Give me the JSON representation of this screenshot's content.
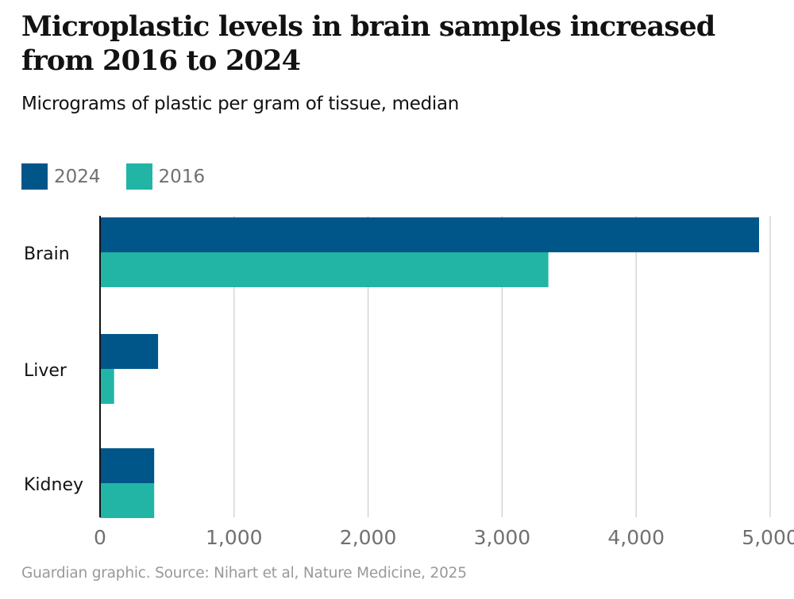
{
  "chart_data": {
    "type": "bar",
    "orientation": "horizontal",
    "title": "Microplastic levels in brain samples increased from 2016 to 2024",
    "subtitle": "Micrograms of plastic per gram of tissue, median",
    "categories": [
      "Brain",
      "Liver",
      "Kidney"
    ],
    "series": [
      {
        "name": "2024",
        "color": "#005689",
        "values": [
          4917,
          433,
          404
        ]
      },
      {
        "name": "2016",
        "color": "#22b5a6",
        "values": [
          3345,
          105,
          404
        ]
      }
    ],
    "xlim": [
      0,
      5000
    ],
    "x_ticks": [
      0,
      1000,
      2000,
      3000,
      4000,
      5000
    ],
    "x_tick_labels": [
      "0",
      "1,000",
      "2,000",
      "3,000",
      "4,000",
      "5,000"
    ],
    "grid": "vertical",
    "legend_position": "top-left",
    "source": "Guardian graphic. Source: Nihart et al, Nature Medicine, 2025"
  }
}
